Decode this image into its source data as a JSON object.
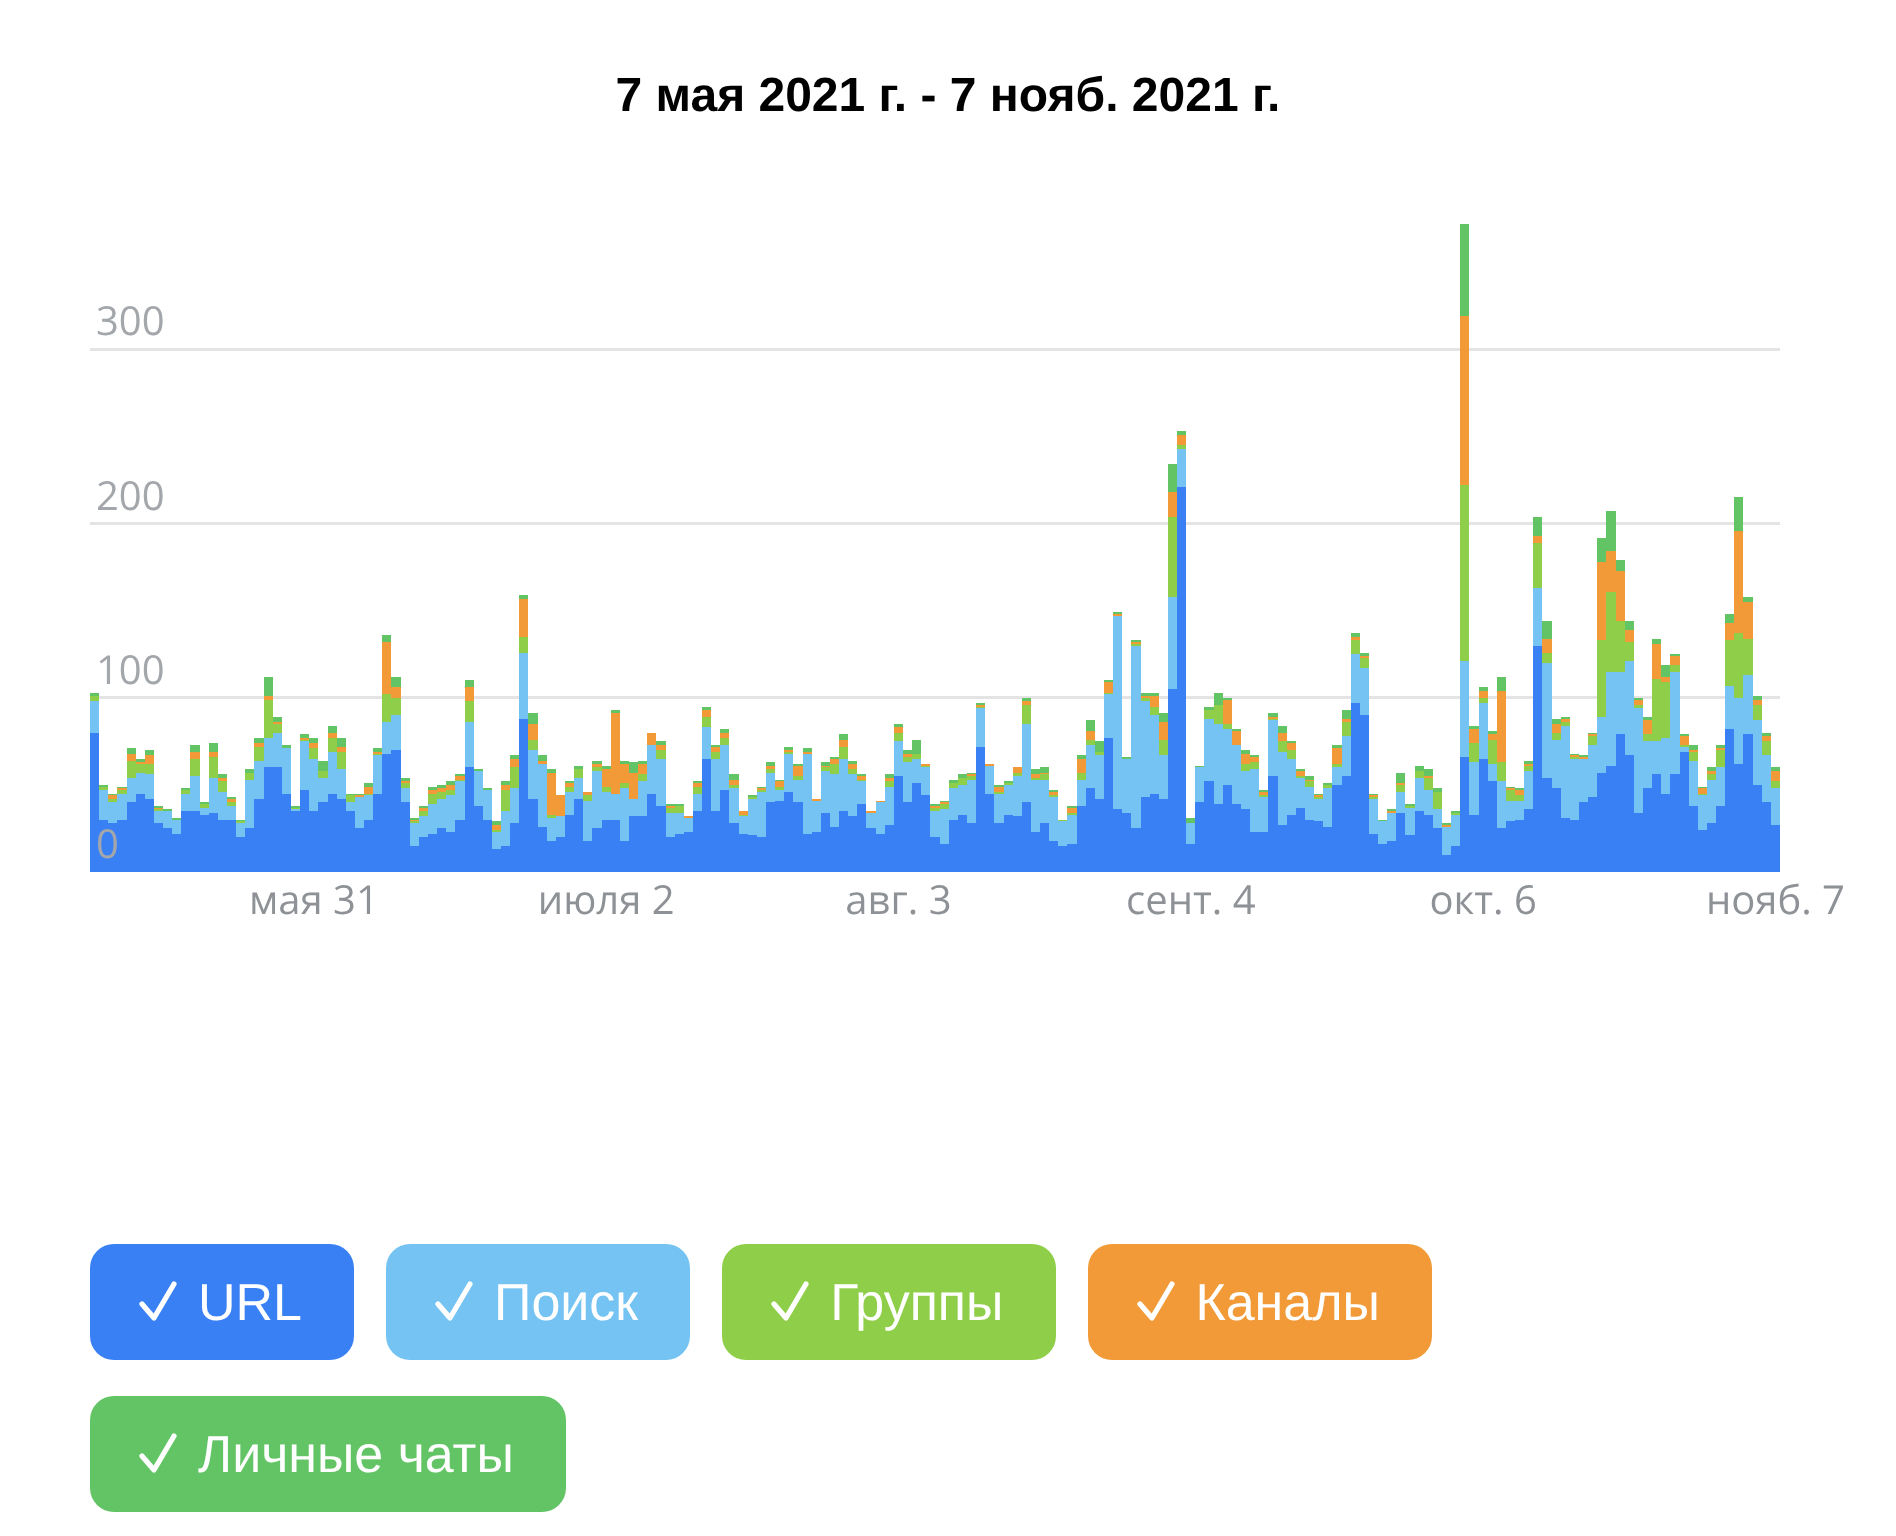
{
  "chart_data": {
    "type": "bar",
    "stacked": true,
    "title": "7 мая 2021 г. - 7 нояб. 2021 г.",
    "x": [
      "2021-05-07",
      "2021-05-08",
      "2021-05-09",
      "2021-05-10",
      "2021-05-11",
      "2021-05-12",
      "2021-05-13",
      "2021-05-14",
      "2021-05-15",
      "2021-05-16",
      "2021-05-17",
      "2021-05-18",
      "2021-05-19",
      "2021-05-20",
      "2021-05-21",
      "2021-05-22",
      "2021-05-23",
      "2021-05-24",
      "2021-05-25",
      "2021-05-26",
      "2021-05-27",
      "2021-05-28",
      "2021-05-29",
      "2021-05-30",
      "2021-05-31",
      "2021-06-01",
      "2021-06-02",
      "2021-06-03",
      "2021-06-04",
      "2021-06-05",
      "2021-06-06",
      "2021-06-07",
      "2021-06-08",
      "2021-06-09",
      "2021-06-10",
      "2021-06-11",
      "2021-06-12",
      "2021-06-13",
      "2021-06-14",
      "2021-06-15",
      "2021-06-16",
      "2021-06-17",
      "2021-06-18",
      "2021-06-19",
      "2021-06-20",
      "2021-06-21",
      "2021-06-22",
      "2021-06-23",
      "2021-06-24",
      "2021-06-25",
      "2021-06-26",
      "2021-06-27",
      "2021-06-28",
      "2021-06-29",
      "2021-06-30",
      "2021-07-01",
      "2021-07-02",
      "2021-07-03",
      "2021-07-04",
      "2021-07-05",
      "2021-07-06",
      "2021-07-07",
      "2021-07-08",
      "2021-07-09",
      "2021-07-10",
      "2021-07-11",
      "2021-07-12",
      "2021-07-13",
      "2021-07-14",
      "2021-07-15",
      "2021-07-16",
      "2021-07-17",
      "2021-07-18",
      "2021-07-19",
      "2021-07-20",
      "2021-07-21",
      "2021-07-22",
      "2021-07-23",
      "2021-07-24",
      "2021-07-25",
      "2021-07-26",
      "2021-07-27",
      "2021-07-28",
      "2021-07-29",
      "2021-07-30",
      "2021-07-31",
      "2021-08-01",
      "2021-08-02",
      "2021-08-03",
      "2021-08-04",
      "2021-08-05",
      "2021-08-06",
      "2021-08-07",
      "2021-08-08",
      "2021-08-09",
      "2021-08-10",
      "2021-08-11",
      "2021-08-12",
      "2021-08-13",
      "2021-08-14",
      "2021-08-15",
      "2021-08-16",
      "2021-08-17",
      "2021-08-18",
      "2021-08-19",
      "2021-08-20",
      "2021-08-21",
      "2021-08-22",
      "2021-08-23",
      "2021-08-24",
      "2021-08-25",
      "2021-08-26",
      "2021-08-27",
      "2021-08-28",
      "2021-08-29",
      "2021-08-30",
      "2021-08-31",
      "2021-09-01",
      "2021-09-02",
      "2021-09-03",
      "2021-09-04",
      "2021-09-05",
      "2021-09-06",
      "2021-09-07",
      "2021-09-08",
      "2021-09-09",
      "2021-09-10",
      "2021-09-11",
      "2021-09-12",
      "2021-09-13",
      "2021-09-14",
      "2021-09-15",
      "2021-09-16",
      "2021-09-17",
      "2021-09-18",
      "2021-09-19",
      "2021-09-20",
      "2021-09-21",
      "2021-09-22",
      "2021-09-23",
      "2021-09-24",
      "2021-09-25",
      "2021-09-26",
      "2021-09-27",
      "2021-09-28",
      "2021-09-29",
      "2021-09-30",
      "2021-10-01",
      "2021-10-02",
      "2021-10-03",
      "2021-10-04",
      "2021-10-05",
      "2021-10-06",
      "2021-10-07",
      "2021-10-08",
      "2021-10-09",
      "2021-10-10",
      "2021-10-11",
      "2021-10-12",
      "2021-10-13",
      "2021-10-14",
      "2021-10-15",
      "2021-10-16",
      "2021-10-17",
      "2021-10-18",
      "2021-10-19",
      "2021-10-20",
      "2021-10-21",
      "2021-10-22",
      "2021-10-23",
      "2021-10-24",
      "2021-10-25",
      "2021-10-26",
      "2021-10-27",
      "2021-10-28",
      "2021-10-29",
      "2021-10-30",
      "2021-10-31",
      "2021-11-01",
      "2021-11-02",
      "2021-11-03",
      "2021-11-04",
      "2021-11-05",
      "2021-11-06",
      "2021-11-07"
    ],
    "series": [
      {
        "name": "URL",
        "color": "#3a80f5",
        "values": [
          80,
          30,
          28,
          30,
          40,
          45,
          42,
          28,
          25,
          22,
          35,
          35,
          33,
          34,
          30,
          30,
          20,
          25,
          42,
          60,
          60,
          45,
          35,
          47,
          35,
          40,
          45,
          42,
          35,
          25,
          30,
          45,
          68,
          70,
          40,
          15,
          20,
          22,
          25,
          23,
          30,
          60,
          38,
          30,
          13,
          15,
          28,
          88,
          42,
          26,
          18,
          20,
          33,
          42,
          18,
          25,
          30,
          30,
          18,
          32,
          32,
          45,
          38,
          20,
          22,
          23,
          35,
          65,
          35,
          47,
          28,
          22,
          21,
          20,
          40,
          41,
          46,
          40,
          22,
          23,
          34,
          26,
          35,
          32,
          39,
          25,
          22,
          27,
          55,
          40,
          51,
          44,
          20,
          16,
          30,
          33,
          28,
          72,
          45,
          28,
          33,
          32,
          40,
          23,
          28,
          18,
          15,
          16,
          38,
          48,
          42,
          77,
          36,
          34,
          25,
          43,
          45,
          42,
          105,
          221,
          16,
          40,
          52,
          39,
          50,
          39,
          36,
          23,
          23,
          55,
          27,
          33,
          37,
          30,
          29,
          26,
          50,
          55,
          97,
          90,
          22,
          16,
          18,
          34,
          21,
          35,
          33,
          25,
          10,
          15,
          66,
          33,
          65,
          52,
          25,
          29,
          30,
          36,
          130,
          54,
          48,
          31,
          30,
          40,
          43,
          57,
          61,
          79,
          67,
          34,
          48,
          56,
          45,
          56,
          69,
          38,
          24,
          28,
          38,
          82,
          62,
          79,
          50,
          40,
          27
        ]
      },
      {
        "name": "Поиск",
        "color": "#74c3f2",
        "values": [
          18,
          17,
          12,
          15,
          14,
          12,
          14,
          7,
          10,
          8,
          10,
          20,
          4,
          20,
          16,
          8,
          8,
          28,
          22,
          17,
          20,
          26,
          1,
          28,
          30,
          14,
          24,
          17,
          5,
          18,
          14,
          22,
          18,
          20,
          8,
          13,
          12,
          17,
          17,
          21,
          22,
          26,
          20,
          17,
          10,
          20,
          20,
          38,
          28,
          36,
          13,
          12,
          13,
          12,
          23,
          33,
          16,
          15,
          30,
          10,
          20,
          28,
          27,
          14,
          12,
          8,
          10,
          18,
          30,
          26,
          20,
          10,
          21,
          26,
          17,
          6,
          22,
          13,
          46,
          18,
          24,
          30,
          30,
          24,
          13,
          9,
          18,
          22,
          20,
          23,
          14,
          16,
          15,
          20,
          18,
          17,
          25,
          22,
          16,
          17,
          17,
          23,
          45,
          30,
          25,
          25,
          14,
          17,
          15,
          25,
          25,
          25,
          111,
          31,
          105,
          55,
          45,
          25,
          53,
          22,
          12,
          20,
          36,
          46,
          32,
          34,
          22,
          36,
          20,
          32,
          42,
          32,
          17,
          19,
          13,
          22,
          10,
          23,
          28,
          27,
          20,
          13,
          16,
          12,
          16,
          19,
          14,
          11,
          16,
          18,
          55,
          30,
          32,
          10,
          27,
          12,
          11,
          22,
          33,
          66,
          28,
          53,
          35,
          25,
          30,
          32,
          54,
          36,
          54,
          60,
          27,
          19,
          32,
          59,
          3,
          26,
          20,
          25,
          22,
          25,
          38,
          34,
          37,
          27,
          21
        ]
      },
      {
        "name": "Группы",
        "color": "#8fce49",
        "values": [
          3,
          2,
          2,
          2,
          10,
          5,
          6,
          1,
          0,
          0,
          2,
          10,
          2,
          12,
          6,
          2,
          1,
          4,
          8,
          22,
          5,
          0,
          1,
          1,
          6,
          4,
          8,
          10,
          4,
          0,
          1,
          1,
          16,
          10,
          3,
          1,
          3,
          6,
          4,
          3,
          1,
          12,
          0,
          0,
          1,
          12,
          12,
          9,
          6,
          0,
          2,
          0,
          3,
          5,
          3,
          2,
          3,
          0,
          3,
          0,
          4,
          0,
          5,
          3,
          4,
          0,
          4,
          6,
          4,
          4,
          2,
          1,
          1,
          1,
          2,
          2,
          1,
          2,
          0,
          0,
          2,
          6,
          7,
          3,
          1,
          0,
          0,
          3,
          5,
          3,
          3,
          1,
          2,
          3,
          3,
          4,
          2,
          1,
          0,
          1,
          1,
          2,
          11,
          1,
          3,
          1,
          1,
          1,
          4,
          3,
          2,
          1,
          0,
          0,
          1,
          2,
          5,
          9,
          46,
          2,
          0,
          0,
          5,
          11,
          3,
          0,
          4,
          4,
          1,
          1,
          6,
          5,
          1,
          3,
          1,
          2,
          2,
          8,
          8,
          6,
          1,
          0,
          0,
          4,
          1,
          4,
          7,
          10,
          0,
          1,
          101,
          11,
          3,
          14,
          11,
          6,
          3,
          3,
          26,
          6,
          4,
          2,
          1,
          0,
          5,
          44,
          46,
          29,
          11,
          2,
          4,
          36,
          32,
          4,
          1,
          5,
          1,
          3,
          10,
          26,
          37,
          21,
          9,
          8,
          4
        ]
      },
      {
        "name": "Каналы",
        "color": "#f29a38",
        "values": [
          0,
          0,
          2,
          1,
          4,
          1,
          5,
          1,
          0,
          0,
          0,
          4,
          0,
          3,
          2,
          2,
          0,
          0,
          2,
          2,
          1,
          0,
          0,
          1,
          3,
          0,
          3,
          3,
          0,
          1,
          4,
          1,
          30,
          6,
          1,
          1,
          2,
          2,
          2,
          3,
          2,
          8,
          0,
          0,
          3,
          3,
          5,
          22,
          9,
          2,
          24,
          12,
          2,
          0,
          2,
          2,
          10,
          46,
          11,
          15,
          6,
          7,
          3,
          1,
          0,
          1,
          2,
          4,
          3,
          3,
          3,
          2,
          0,
          1,
          2,
          3,
          1,
          6,
          1,
          1,
          1,
          3,
          4,
          3,
          2,
          1,
          1,
          2,
          3,
          2,
          0,
          1,
          1,
          1,
          0,
          0,
          1,
          1,
          1,
          3,
          0,
          3,
          2,
          2,
          1,
          2,
          0,
          3,
          8,
          5,
          0,
          6,
          1,
          0,
          1,
          1,
          6,
          10,
          14,
          6,
          0,
          0,
          0,
          0,
          14,
          8,
          6,
          3,
          2,
          1,
          5,
          4,
          3,
          1,
          1,
          0,
          9,
          2,
          2,
          1,
          1,
          0,
          1,
          1,
          0,
          0,
          1,
          0,
          1,
          0,
          97,
          8,
          4,
          3,
          41,
          1,
          3,
          1,
          4,
          8,
          5,
          2,
          1,
          1,
          1,
          45,
          23,
          29,
          7,
          3,
          8,
          20,
          3,
          5,
          5,
          1,
          3,
          2,
          1,
          10,
          59,
          21,
          3,
          3,
          6
        ]
      },
      {
        "name": "Личные чаты",
        "color": "#63c466",
        "values": [
          2,
          1,
          1,
          1,
          3,
          2,
          3,
          1,
          1,
          1,
          1,
          4,
          1,
          5,
          2,
          1,
          1,
          2,
          3,
          11,
          3,
          2,
          1,
          2,
          3,
          6,
          4,
          5,
          1,
          1,
          2,
          2,
          4,
          6,
          2,
          1,
          1,
          2,
          2,
          2,
          1,
          4,
          1,
          1,
          2,
          2,
          2,
          2,
          6,
          3,
          2,
          0,
          1,
          2,
          0,
          2,
          2,
          2,
          2,
          6,
          2,
          0,
          2,
          1,
          1,
          0,
          1,
          2,
          1,
          2,
          3,
          0,
          1,
          1,
          2,
          1,
          2,
          1,
          2,
          0,
          2,
          1,
          3,
          2,
          1,
          0,
          0,
          2,
          2,
          2,
          8,
          0,
          1,
          1,
          2,
          2,
          1,
          1,
          0,
          1,
          1,
          0,
          2,
          3,
          3,
          1,
          0,
          1,
          2,
          6,
          6,
          1,
          1,
          1,
          1,
          2,
          2,
          5,
          16,
          2,
          3,
          1,
          2,
          7,
          1,
          1,
          2,
          1,
          1,
          2,
          4,
          1,
          1,
          2,
          1,
          1,
          2,
          5,
          2,
          2,
          1,
          1,
          1,
          6,
          1,
          3,
          4,
          2,
          1,
          1,
          53,
          2,
          2,
          2,
          8,
          1,
          1,
          2,
          11,
          10,
          3,
          1,
          1,
          1,
          1,
          14,
          23,
          6,
          5,
          1,
          2,
          3,
          7,
          1,
          1,
          3,
          1,
          2,
          2,
          5,
          19,
          3,
          2,
          2,
          2
        ]
      }
    ],
    "xlim": [
      "2021-05-06T12:00",
      "2021-11-07T12:00"
    ],
    "xticks": [
      {
        "value": "2021-05-31",
        "label": "мая 31"
      },
      {
        "value": "2021-07-02",
        "label": "июля 2"
      },
      {
        "value": "2021-08-03",
        "label": "авг. 3"
      },
      {
        "value": "2021-09-04",
        "label": "сент. 4"
      },
      {
        "value": "2021-10-06",
        "label": "окт. 6"
      },
      {
        "value": "2021-11-07",
        "label": "нояб. 7"
      }
    ],
    "ylim": [
      0,
      372
    ],
    "yticks": [
      0,
      100,
      200,
      300
    ],
    "grid": "y",
    "legend": "bottom"
  }
}
